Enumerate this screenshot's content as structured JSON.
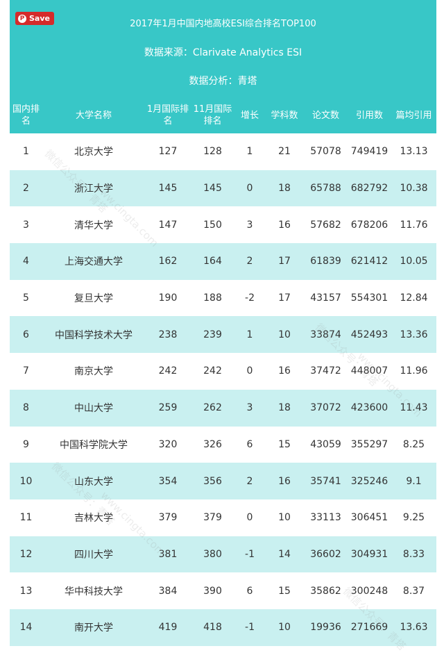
{
  "save_button": {
    "label": "Save"
  },
  "header": {
    "title": "2017年1月中国内地高校ESI综合排名TOP100",
    "source": "数据来源：Clarivate Analytics ESI",
    "analysis": "数据分析：青塔"
  },
  "table": {
    "columns": [
      "国内排名",
      "大学名称",
      "1月国际排名",
      "11月国际排名",
      "增长",
      "学科数",
      "论文数",
      "引用数",
      "篇均引用"
    ],
    "rows": [
      [
        "1",
        "北京大学",
        "127",
        "128",
        "1",
        "21",
        "57078",
        "749419",
        "13.13"
      ],
      [
        "2",
        "浙江大学",
        "145",
        "145",
        "0",
        "18",
        "65788",
        "682792",
        "10.38"
      ],
      [
        "3",
        "清华大学",
        "147",
        "150",
        "3",
        "16",
        "57682",
        "678206",
        "11.76"
      ],
      [
        "4",
        "上海交通大学",
        "162",
        "164",
        "2",
        "17",
        "61839",
        "621412",
        "10.05"
      ],
      [
        "5",
        "复旦大学",
        "190",
        "188",
        "-2",
        "17",
        "43157",
        "554301",
        "12.84"
      ],
      [
        "6",
        "中国科学技术大学",
        "238",
        "239",
        "1",
        "10",
        "33874",
        "452493",
        "13.36"
      ],
      [
        "7",
        "南京大学",
        "242",
        "242",
        "0",
        "16",
        "37472",
        "448007",
        "11.96"
      ],
      [
        "8",
        "中山大学",
        "259",
        "262",
        "3",
        "18",
        "37072",
        "423600",
        "11.43"
      ],
      [
        "9",
        "中国科学院大学",
        "320",
        "326",
        "6",
        "15",
        "43059",
        "355297",
        "8.25"
      ],
      [
        "10",
        "山东大学",
        "354",
        "356",
        "2",
        "16",
        "35741",
        "325246",
        "9.1"
      ],
      [
        "11",
        "吉林大学",
        "379",
        "379",
        "0",
        "10",
        "33113",
        "306451",
        "9.25"
      ],
      [
        "12",
        "四川大学",
        "381",
        "380",
        "-1",
        "14",
        "36602",
        "304931",
        "8.33"
      ],
      [
        "13",
        "华中科技大学",
        "384",
        "390",
        "6",
        "15",
        "35862",
        "300248",
        "8.37"
      ],
      [
        "14",
        "南开大学",
        "419",
        "418",
        "-1",
        "10",
        "19936",
        "271669",
        "13.63"
      ]
    ]
  },
  "watermarks": [
    "微信公众号：青塔",
    "www.cingta.com"
  ]
}
